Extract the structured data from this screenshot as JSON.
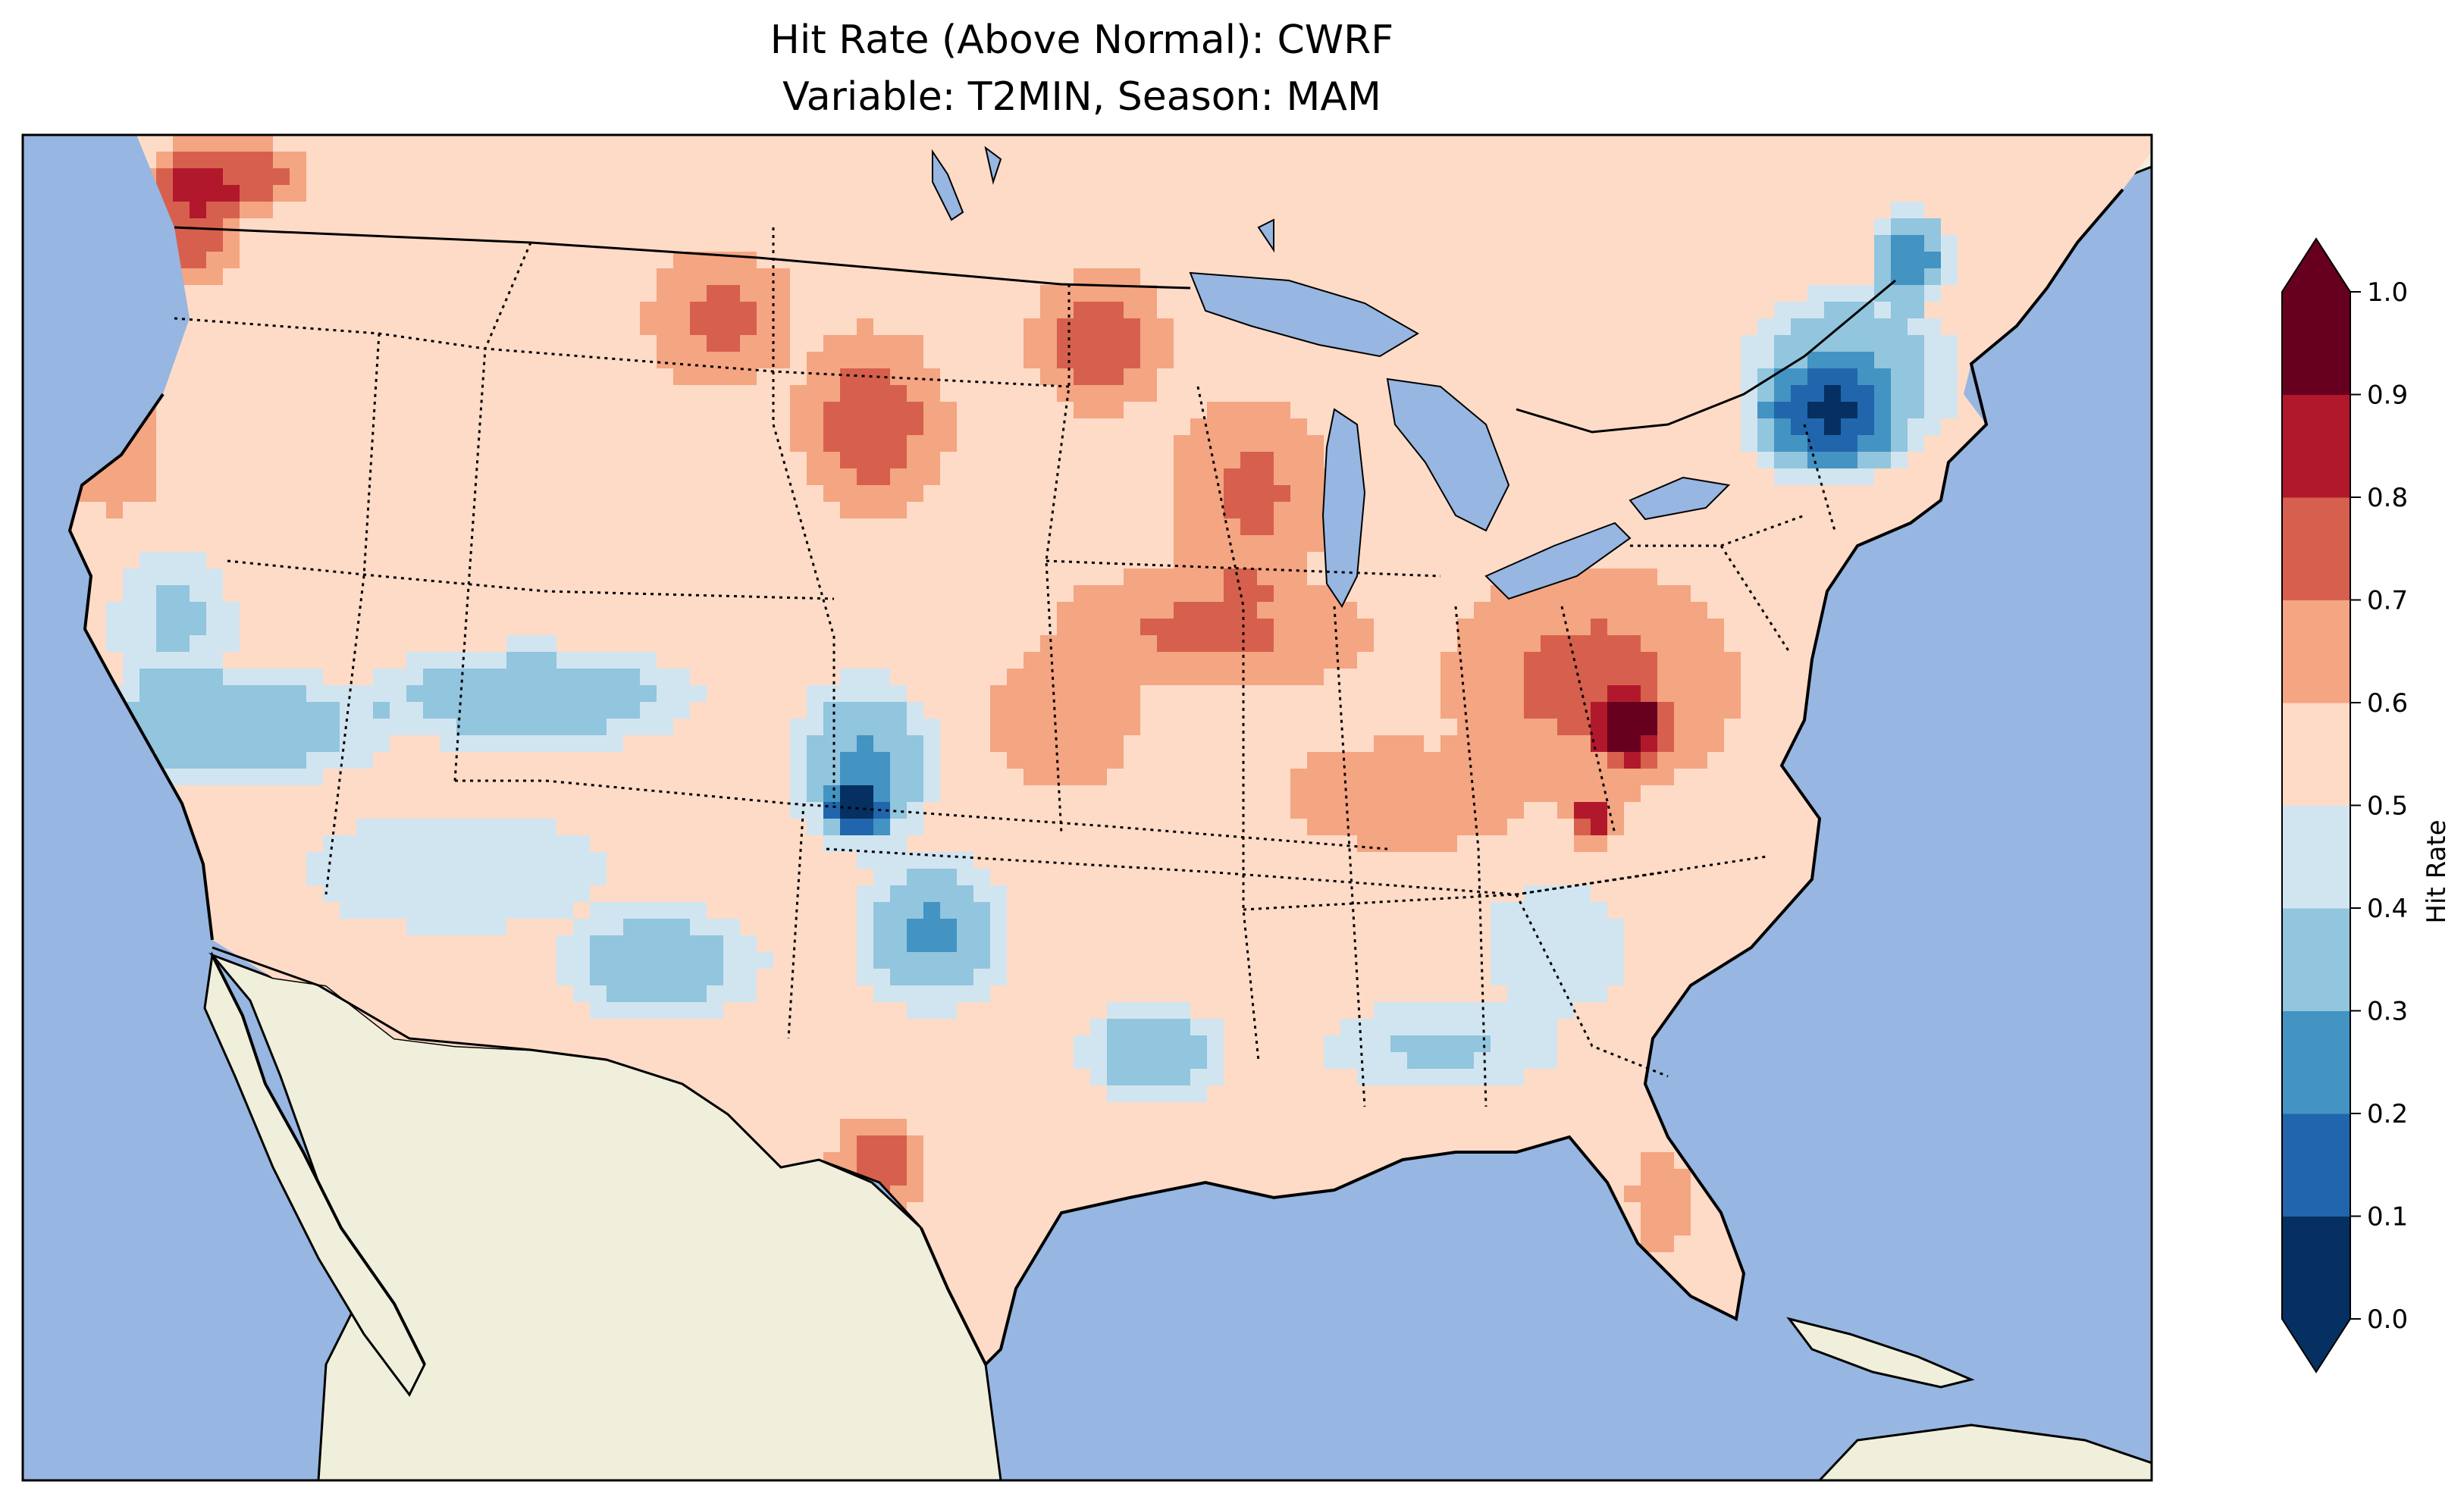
{
  "title_line1": "Hit Rate (Above Normal): CWRF",
  "title_line2": "Variable: T2MIN, Season: MAM",
  "colorbar": {
    "label": "Hit Rate",
    "ticks": [
      "0.0",
      "0.1",
      "0.2",
      "0.3",
      "0.4",
      "0.5",
      "0.6",
      "0.7",
      "0.8",
      "0.9",
      "1.0"
    ],
    "extend": "both",
    "colors": [
      "#053061",
      "#2166ac",
      "#4393c3",
      "#92c5de",
      "#d1e5f0",
      "#fddbc7",
      "#f4a582",
      "#d6604d",
      "#b2182b",
      "#67001f"
    ],
    "under_color": "#053061",
    "over_color": "#67001f"
  },
  "colors": {
    "ocean": "#97b6e1",
    "land": "#efefdc"
  }
}
